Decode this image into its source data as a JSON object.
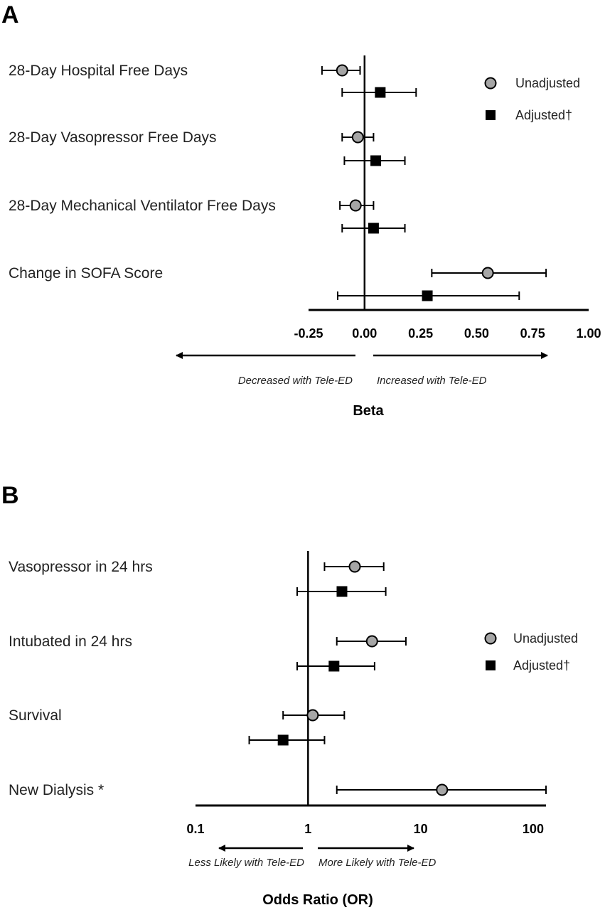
{
  "chart_data": [
    {
      "panel": "A",
      "type": "forest",
      "rows": [
        "28-Day Hospital Free Days",
        "28-Day Vasopressor Free Days",
        "28-Day Mechanical Ventilator Free Days",
        "Change in SOFA Score"
      ],
      "series": [
        {
          "name": "Unadjusted",
          "marker": "circle",
          "color": "#a6a6a6",
          "points": [
            {
              "est": -0.1,
              "lo": -0.19,
              "hi": -0.02
            },
            {
              "est": -0.03,
              "lo": -0.1,
              "hi": 0.04
            },
            {
              "est": -0.04,
              "lo": -0.11,
              "hi": 0.04
            },
            {
              "est": 0.55,
              "lo": 0.3,
              "hi": 0.81
            }
          ]
        },
        {
          "name": "Adjusted†",
          "marker": "square",
          "color": "#000000",
          "points": [
            {
              "est": 0.07,
              "lo": -0.1,
              "hi": 0.23
            },
            {
              "est": 0.05,
              "lo": -0.09,
              "hi": 0.18
            },
            {
              "est": 0.04,
              "lo": -0.1,
              "hi": 0.18
            },
            {
              "est": 0.28,
              "lo": -0.12,
              "hi": 0.69
            }
          ]
        }
      ],
      "xscale": "linear",
      "xlim": [
        -0.25,
        1.0
      ],
      "ticks": [
        "-0.25",
        "0.00",
        "0.25",
        "0.50",
        "0.75",
        "1.00"
      ],
      "tick_values": [
        -0.25,
        0.0,
        0.25,
        0.5,
        0.75,
        1.0
      ],
      "reference_line": 0,
      "xlabel": "Beta",
      "direction_left": "Decreased with Tele-ED",
      "direction_right": "Increased with Tele-ED",
      "legend_position": "top-right"
    },
    {
      "panel": "B",
      "type": "forest",
      "rows": [
        "Vasopressor in 24 hrs",
        "Intubated in 24 hrs",
        "Survival",
        "New Dialysis *"
      ],
      "series": [
        {
          "name": "Unadjusted",
          "marker": "circle",
          "color": "#a6a6a6",
          "points": [
            {
              "est": 2.6,
              "lo": 1.4,
              "hi": 4.7
            },
            {
              "est": 3.7,
              "lo": 1.8,
              "hi": 7.4
            },
            {
              "est": 1.1,
              "lo": 0.6,
              "hi": 2.1
            },
            {
              "est": 15.5,
              "lo": 1.8,
              "hi": 130
            }
          ]
        },
        {
          "name": "Adjusted†",
          "marker": "square",
          "color": "#000000",
          "points": [
            {
              "est": 2.0,
              "lo": 0.8,
              "hi": 4.9
            },
            {
              "est": 1.7,
              "lo": 0.8,
              "hi": 3.9
            },
            {
              "est": 0.6,
              "lo": 0.3,
              "hi": 1.4
            }
          ]
        }
      ],
      "xscale": "log",
      "xlim": [
        0.1,
        130
      ],
      "ticks": [
        "0.1",
        "1",
        "10",
        "100"
      ],
      "tick_values": [
        0.1,
        1,
        10,
        100
      ],
      "reference_line": 1,
      "xlabel": "Odds Ratio (OR)",
      "direction_left": "Less Likely with Tele-ED",
      "direction_right": "More Likely with Tele-ED",
      "legend_position": "right"
    }
  ]
}
